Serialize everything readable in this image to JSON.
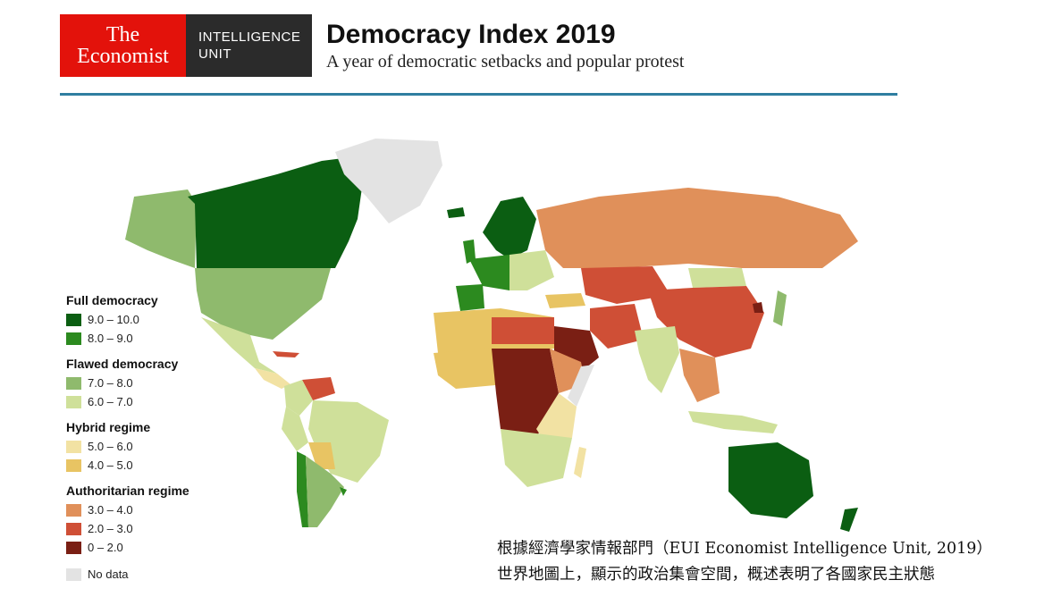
{
  "header": {
    "brand_left": [
      "The",
      "Economist"
    ],
    "brand_right": [
      "INTELLIGENCE",
      "UNIT"
    ],
    "title": "Democracy Index 2019",
    "subtitle": "A year of democratic setbacks and popular protest"
  },
  "legend": {
    "groups": [
      {
        "title": "Full democracy",
        "items": [
          {
            "label": "9.0 – 10.0",
            "color": "#0b5e12"
          },
          {
            "label": "8.0 – 9.0",
            "color": "#2c8a1f"
          }
        ]
      },
      {
        "title": "Flawed democracy",
        "items": [
          {
            "label": "7.0 – 8.0",
            "color": "#8fba6d"
          },
          {
            "label": "6.0 – 7.0",
            "color": "#cfe09a"
          }
        ]
      },
      {
        "title": "Hybrid regime",
        "items": [
          {
            "label": "5.0 – 6.0",
            "color": "#f2e2a3"
          },
          {
            "label": "4.0 – 5.0",
            "color": "#e8c463"
          }
        ]
      },
      {
        "title": "Authoritarian regime",
        "items": [
          {
            "label": "3.0 – 4.0",
            "color": "#e0905a"
          },
          {
            "label": "2.0 – 3.0",
            "color": "#cf4f36"
          },
          {
            "label": "0 – 2.0",
            "color": "#7a1f14"
          }
        ]
      }
    ],
    "no_data": {
      "label": "No data",
      "color": "#e3e3e3"
    }
  },
  "caption": {
    "line1": "根據經濟學家情報部門（EUI Economist Intelligence Unit, 2019）",
    "line2": "世界地圖上，顯示的政治集會空間，概述表明了各國家民主狀態"
  }
}
